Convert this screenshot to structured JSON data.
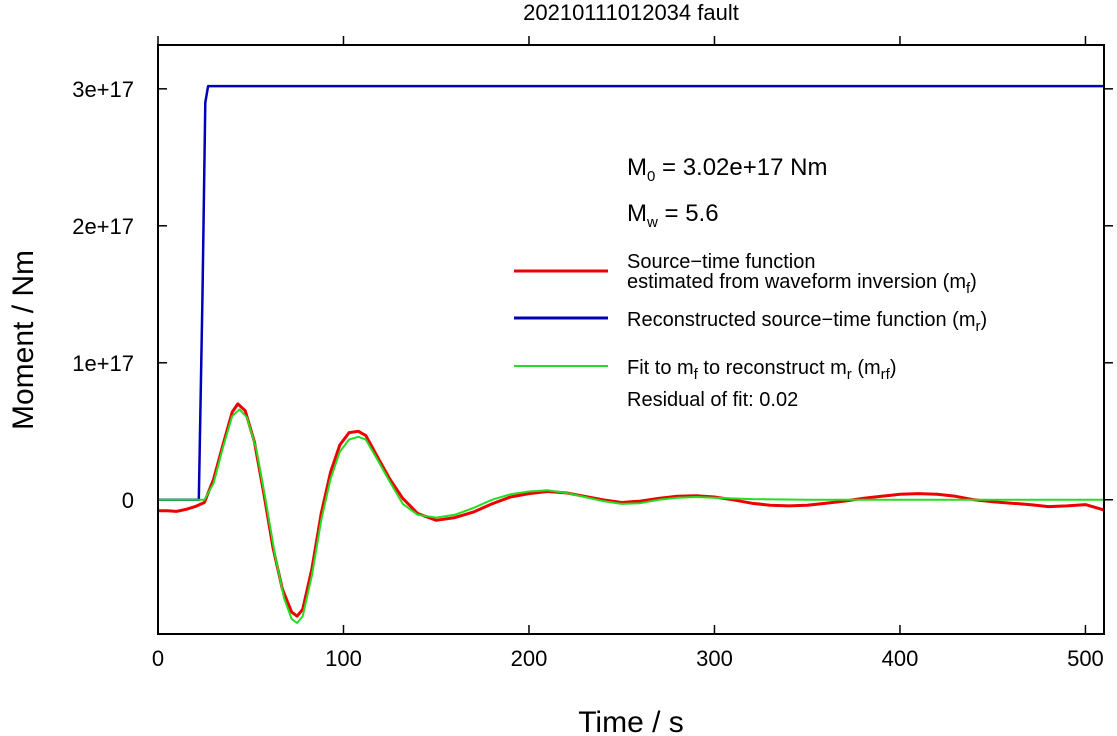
{
  "chart_data": {
    "type": "line",
    "title": "20210111012034 fault",
    "xlabel": "Time / s",
    "ylabel": "Moment / Nm",
    "xlim": [
      0,
      510
    ],
    "ylim": [
      -9.8e+16,
      3.32e+17
    ],
    "x_ticks": [
      0,
      100,
      200,
      300,
      400,
      500
    ],
    "y_ticks": [
      0,
      1e+17,
      2e+17,
      3e+17
    ],
    "x_tick_labels": [
      "0",
      "100",
      "200",
      "300",
      "400",
      "500"
    ],
    "y_tick_labels": [
      "0",
      "1e+17",
      "2e+17",
      "3e+17"
    ],
    "grid": false,
    "legend_position": "right",
    "annotations": {
      "m0_prefix": "M",
      "m0_sub": "0",
      "m0_text": " = 3.02e+17 Nm",
      "mw_prefix": "M",
      "mw_sub": "w",
      "mw_text": " = 5.6",
      "residual": "Residual of fit: 0.02"
    },
    "legend": {
      "red_line1": "Source−time function",
      "red_line2": "estimated from waveform inversion (m",
      "red_sub": "f",
      "red_close": ")",
      "blue_text": "Reconstructed source−time function (m",
      "blue_sub": "r",
      "blue_close": ")",
      "green_text1": "Fit to m",
      "green_sub1": "f",
      "green_text2": " to reconstruct m",
      "green_sub2": "r",
      "green_text3": " (m",
      "green_sub3": "rf",
      "green_close": ")"
    },
    "series": [
      {
        "color": "#ee0000",
        "x": [
          0,
          5,
          10,
          15,
          20,
          25,
          30,
          35,
          40,
          43,
          47,
          52,
          57,
          62,
          67,
          72,
          75,
          78,
          83,
          88,
          93,
          98,
          103,
          108,
          112,
          118,
          125,
          132,
          140,
          150,
          160,
          170,
          180,
          190,
          200,
          210,
          220,
          230,
          240,
          250,
          260,
          270,
          280,
          290,
          300,
          310,
          320,
          330,
          340,
          350,
          360,
          370,
          380,
          390,
          400,
          410,
          420,
          430,
          440,
          450,
          460,
          470,
          480,
          490,
          500,
          510
        ],
        "y": [
          -8000000000000000.0,
          -8000000000000000.0,
          -8500000000000000.0,
          -7000000000000000.0,
          -5000000000000000.0,
          -2000000000000000.0,
          1.5e+16,
          4e+16,
          6.4e+16,
          7e+16,
          6.5e+16,
          4.2e+16,
          5000000000000000.0,
          -3.5e+16,
          -6.5e+16,
          -8.2e+16,
          -8.5e+16,
          -8e+16,
          -5e+16,
          -1e+16,
          2e+16,
          4e+16,
          4.9e+16,
          5e+16,
          4.7e+16,
          3.2e+16,
          1.5e+16,
          1000000000000000.0,
          -1e+16,
          -1.5e+16,
          -1.3e+16,
          -9000000000000000.0,
          -3000000000000000.0,
          2000000000000000.0,
          4500000000000000.0,
          6000000000000000.0,
          5000000000000000.0,
          2500000000000000.0,
          0,
          -2000000000000000.0,
          -1000000000000000.0,
          1000000000000000.0,
          2500000000000000.0,
          3000000000000000.0,
          2000000000000000.0,
          0,
          -2500000000000000.0,
          -4000000000000000.0,
          -4500000000000000.0,
          -4000000000000000.0,
          -2500000000000000.0,
          -1000000000000000.0,
          1000000000000000.0,
          2500000000000000.0,
          4000000000000000.0,
          4500000000000000.0,
          4000000000000000.0,
          2500000000000000.0,
          0,
          -1500000000000000.0,
          -2500000000000000.0,
          -3500000000000000.0,
          -5000000000000000.0,
          -4500000000000000.0,
          -3500000000000000.0,
          -7500000000000000.0
        ]
      },
      {
        "color": "#0000bb",
        "x": [
          0,
          22,
          24,
          25.5,
          27,
          30,
          510
        ],
        "y": [
          0,
          0,
          1.5e+17,
          2.9e+17,
          3.02e+17,
          3.02e+17,
          3.02e+17
        ]
      },
      {
        "color": "#22dd22",
        "x": [
          0,
          22,
          25,
          30,
          35,
          40,
          44,
          48,
          53,
          58,
          63,
          68,
          72,
          75,
          78,
          83,
          88,
          93,
          98,
          103,
          108,
          112,
          118,
          125,
          132,
          140,
          150,
          160,
          170,
          180,
          190,
          200,
          210,
          220,
          230,
          240,
          250,
          260,
          270,
          280,
          290,
          300,
          320,
          350,
          400,
          450,
          510
        ],
        "y": [
          0,
          0,
          0,
          1.2e+16,
          3.8e+16,
          6.1e+16,
          6.6e+16,
          6e+16,
          3.7e+16,
          0,
          -4e+16,
          -7.2e+16,
          -8.7e+16,
          -9e+16,
          -8.5e+16,
          -5.5e+16,
          -1.5e+16,
          1.5e+16,
          3.5e+16,
          4.4e+16,
          4.6e+16,
          4.4e+16,
          3e+16,
          1.3e+16,
          -3000000000000000.0,
          -1.1e+16,
          -1.3e+16,
          -1.1e+16,
          -6000000000000000.0,
          0,
          4000000000000000.0,
          6000000000000000.0,
          7000000000000000.0,
          5000000000000000.0,
          2000000000000000.0,
          -1000000000000000.0,
          -3000000000000000.0,
          -2500000000000000.0,
          0,
          1500000000000000.0,
          2000000000000000.0,
          1500000000000000.0,
          500000000000000.0,
          0,
          0,
          0,
          0
        ]
      }
    ]
  }
}
